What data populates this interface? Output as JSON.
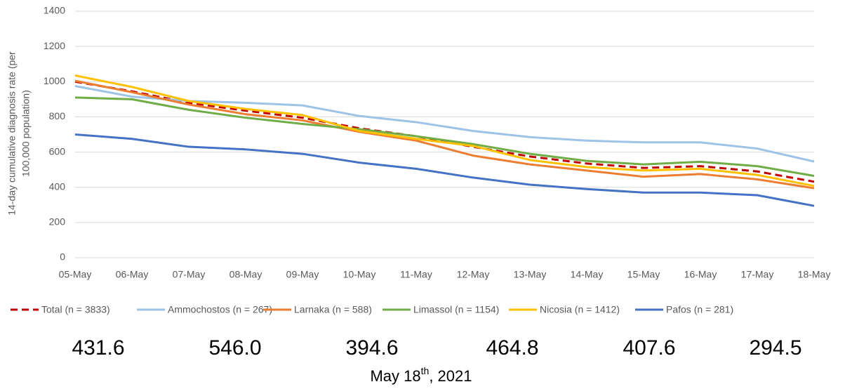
{
  "chart_data": {
    "type": "line",
    "ylabel": [
      "14-day cumulative diagnosis rate (per",
      "100,000 population)"
    ],
    "categories": [
      "05-May",
      "06-May",
      "07-May",
      "08-May",
      "09-May",
      "10-May",
      "11-May",
      "12-May",
      "13-May",
      "14-May",
      "15-May",
      "16-May",
      "17-May",
      "18-May"
    ],
    "series": [
      {
        "name": "Total (n = 3833)",
        "color": "#c00000",
        "dashed": true,
        "values": [
          1000,
          945,
          880,
          835,
          795,
          735,
          690,
          630,
          575,
          535,
          510,
          520,
          490,
          431.6
        ]
      },
      {
        "name": "Ammochostos (n = 267)",
        "color": "#9dc3e6",
        "values": [
          975,
          915,
          890,
          880,
          865,
          805,
          770,
          720,
          685,
          665,
          655,
          655,
          620,
          546.0
        ]
      },
      {
        "name": "Larnaka (n = 588)",
        "color": "#ed7d31",
        "values": [
          1005,
          940,
          870,
          815,
          780,
          715,
          665,
          580,
          530,
          495,
          460,
          475,
          445,
          394.6
        ]
      },
      {
        "name": "Limassol (n = 1154)",
        "color": "#70ad47",
        "values": [
          910,
          900,
          840,
          795,
          760,
          730,
          690,
          645,
          590,
          550,
          530,
          545,
          520,
          464.8
        ]
      },
      {
        "name": "Nicosia (n = 1412)",
        "color": "#ffc000",
        "values": [
          1035,
          970,
          890,
          845,
          810,
          720,
          675,
          635,
          555,
          515,
          495,
          505,
          470,
          407.6
        ]
      },
      {
        "name": "Pafos (n = 281)",
        "color": "#4472c4",
        "values": [
          700,
          675,
          630,
          615,
          590,
          540,
          505,
          455,
          415,
          390,
          370,
          370,
          355,
          294.5
        ]
      }
    ],
    "ylim": [
      0,
      1400
    ],
    "yticks": [
      0,
      200,
      400,
      600,
      800,
      1000,
      1200,
      1400
    ],
    "grid": true,
    "legend": "bottom",
    "annotations": [
      {
        "value": 431.6,
        "label": "431.6"
      },
      {
        "value": 546.0,
        "label": "546.0"
      },
      {
        "value": 394.6,
        "label": "394.6"
      },
      {
        "value": 464.8,
        "label": "464.8"
      },
      {
        "value": 407.6,
        "label": "407.6"
      },
      {
        "value": 294.5,
        "label": "294.5"
      }
    ],
    "caption": [
      "May 18",
      "th",
      ", 2021"
    ]
  }
}
